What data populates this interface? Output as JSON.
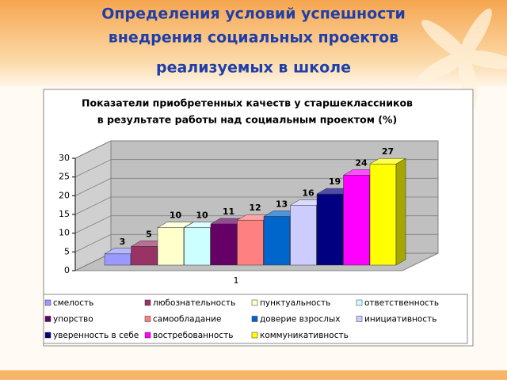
{
  "slide": {
    "title_lines": [
      "Определения условий успешности",
      "внедрения социальных проектов",
      "реализуемых в школе"
    ]
  },
  "chart_data": {
    "type": "bar3d",
    "title_lines": [
      "Показатели приобретенных качеств у старшеклассников",
      "в результате работы над социальным проектом (%)"
    ],
    "categories": [
      "1"
    ],
    "series": [
      {
        "name": "смелость",
        "color": "#9999ff",
        "values": [
          3
        ]
      },
      {
        "name": "любознательность",
        "color": "#993366",
        "values": [
          5
        ]
      },
      {
        "name": "пунктуальность",
        "color": "#ffffcc",
        "values": [
          10
        ]
      },
      {
        "name": "ответственность",
        "color": "#ccffff",
        "values": [
          10
        ]
      },
      {
        "name": "упорство",
        "color": "#660066",
        "values": [
          11
        ]
      },
      {
        "name": "самообладание",
        "color": "#ff8080",
        "values": [
          12
        ]
      },
      {
        "name": "доверие взрослых",
        "color": "#0066cc",
        "values": [
          13
        ]
      },
      {
        "name": "инициативность",
        "color": "#ccccff",
        "values": [
          16
        ]
      },
      {
        "name": "уверенность в себе",
        "color": "#000080",
        "values": [
          19
        ]
      },
      {
        "name": "востребованность",
        "color": "#ff00ff",
        "values": [
          24
        ]
      },
      {
        "name": "коммуникативность",
        "color": "#ffff00",
        "values": [
          27
        ]
      }
    ],
    "ylim": [
      0,
      30
    ],
    "yticks": [
      0,
      5,
      10,
      15,
      20,
      25,
      30
    ],
    "grid": true,
    "legend": "bottom"
  }
}
